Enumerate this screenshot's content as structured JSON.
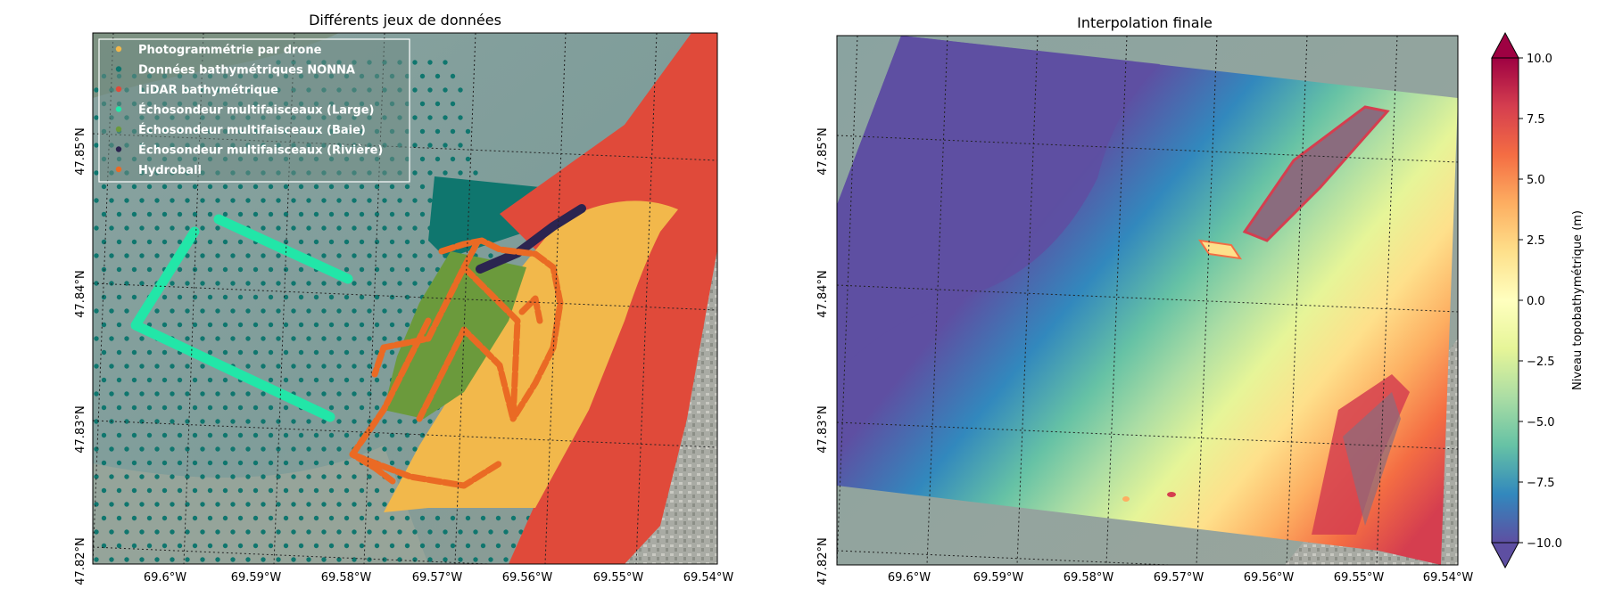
{
  "figure": {
    "left_panel": {
      "title": "Différents jeux de données",
      "legend": [
        {
          "label": "Photogrammétrie par drone",
          "color": "#f2b84b"
        },
        {
          "label": "Données bathymétriques NONNA",
          "color": "#0f766e"
        },
        {
          "label": "LiDAR bathymétrique",
          "color": "#e04a3a"
        },
        {
          "label": "Échosondeur multifaisceaux (Large)",
          "color": "#22e6a8"
        },
        {
          "label": "Échosondeur multifaisceaux (Baie)",
          "color": "#6b9a3c"
        },
        {
          "label": "Échosondeur multifaisceaux (Rivière)",
          "color": "#2b2450"
        },
        {
          "label": "Hydroball",
          "color": "#ea6a24"
        }
      ]
    },
    "right_panel": {
      "title": "Interpolation finale"
    },
    "axes": {
      "x_ticks": [
        "69.6°W",
        "69.59°W",
        "69.58°W",
        "69.57°W",
        "69.56°W",
        "69.55°W",
        "69.54°W"
      ],
      "y_ticks": [
        "47.85°N",
        "47.84°N",
        "47.83°N",
        "47.82°N"
      ]
    },
    "colorbar": {
      "label": "Niveau topobathymétrique (m)",
      "ticks": [
        "10.0",
        "7.5",
        "5.0",
        "2.5",
        "0.0",
        "−2.5",
        "−5.0",
        "−7.5",
        "−10.0"
      ],
      "range": [
        -10,
        10
      ],
      "colormap": "Spectral_r"
    }
  }
}
